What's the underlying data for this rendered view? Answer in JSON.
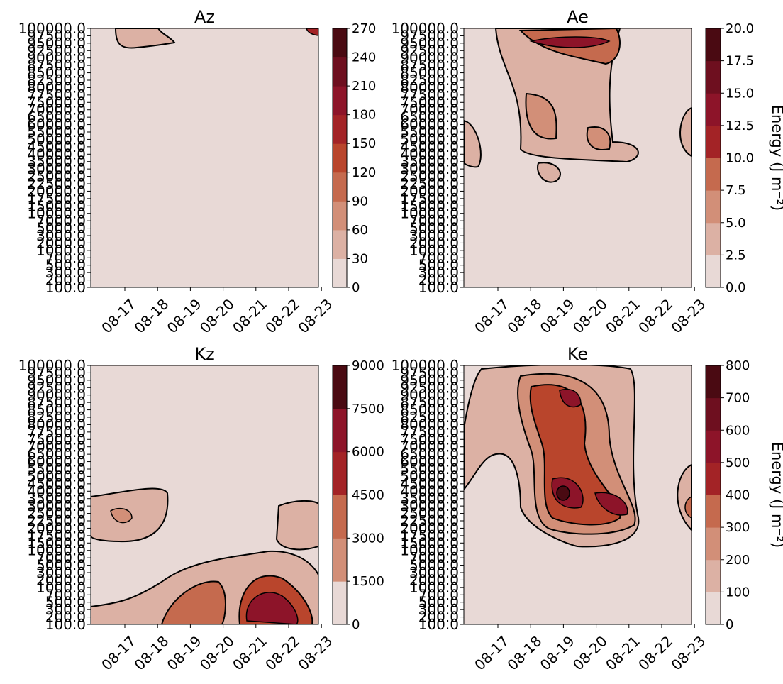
{
  "chart_data": [
    {
      "type": "heatmap",
      "title": "Az",
      "x_ticks": [
        "08-17",
        "08-18",
        "08-19",
        "08-20",
        "08-21",
        "08-22",
        "08-23"
      ],
      "y_ticks": [
        "100.0",
        "200.0",
        "300.0",
        "500.0",
        "700.0",
        "1000.0",
        "2000.0",
        "3000.0",
        "5000.0",
        "7000.0",
        "10000.0",
        "15000.0",
        "17500.0",
        "20000.0",
        "22500.0",
        "25000.0",
        "30000.0",
        "35000.0",
        "40000.0",
        "45000.0",
        "50000.0",
        "55000.0",
        "60000.0",
        "65000.0",
        "70000.0",
        "75000.0",
        "77500.0",
        "80000.0",
        "82500.0",
        "85000.0",
        "87500.0",
        "90000.0",
        "92500.0",
        "95000.0",
        "97500.0",
        "100000.0"
      ],
      "colorbar_ticks": [
        "0",
        "30",
        "60",
        "90",
        "120",
        "150",
        "180",
        "210",
        "240",
        "270"
      ],
      "colorbar_label": "",
      "levels": [
        0,
        30,
        60,
        90,
        120,
        150,
        180,
        210,
        240,
        270
      ]
    },
    {
      "type": "heatmap",
      "title": "Ae",
      "x_ticks": [
        "08-17",
        "08-18",
        "08-19",
        "08-20",
        "08-21",
        "08-22",
        "08-23"
      ],
      "y_ticks": [
        "100.0",
        "200.0",
        "300.0",
        "500.0",
        "700.0",
        "1000.0",
        "2000.0",
        "3000.0",
        "5000.0",
        "7000.0",
        "10000.0",
        "15000.0",
        "17500.0",
        "20000.0",
        "22500.0",
        "25000.0",
        "30000.0",
        "35000.0",
        "40000.0",
        "45000.0",
        "50000.0",
        "55000.0",
        "60000.0",
        "65000.0",
        "70000.0",
        "75000.0",
        "77500.0",
        "80000.0",
        "82500.0",
        "85000.0",
        "87500.0",
        "90000.0",
        "92500.0",
        "95000.0",
        "97500.0",
        "100000.0"
      ],
      "colorbar_ticks": [
        "0.0",
        "2.5",
        "5.0",
        "7.5",
        "10.0",
        "12.5",
        "15.0",
        "17.5",
        "20.0"
      ],
      "colorbar_label": "Energy  (J m⁻²)",
      "levels": [
        0,
        2.5,
        5,
        7.5,
        10,
        12.5,
        15,
        17.5,
        20
      ]
    },
    {
      "type": "heatmap",
      "title": "Kz",
      "x_ticks": [
        "08-17",
        "08-18",
        "08-19",
        "08-20",
        "08-21",
        "08-22",
        "08-23"
      ],
      "y_ticks": [
        "100.0",
        "200.0",
        "300.0",
        "500.0",
        "700.0",
        "1000.0",
        "2000.0",
        "3000.0",
        "5000.0",
        "7000.0",
        "10000.0",
        "15000.0",
        "17500.0",
        "20000.0",
        "22500.0",
        "25000.0",
        "30000.0",
        "35000.0",
        "40000.0",
        "45000.0",
        "50000.0",
        "55000.0",
        "60000.0",
        "65000.0",
        "70000.0",
        "75000.0",
        "77500.0",
        "80000.0",
        "82500.0",
        "85000.0",
        "87500.0",
        "90000.0",
        "92500.0",
        "95000.0",
        "97500.0",
        "100000.0"
      ],
      "colorbar_ticks": [
        "0",
        "1500",
        "3000",
        "4500",
        "6000",
        "7500",
        "9000"
      ],
      "colorbar_label": "",
      "levels": [
        0,
        1500,
        3000,
        4500,
        6000,
        7500,
        9000
      ]
    },
    {
      "type": "heatmap",
      "title": "Ke",
      "x_ticks": [
        "08-17",
        "08-18",
        "08-19",
        "08-20",
        "08-21",
        "08-22",
        "08-23"
      ],
      "y_ticks": [
        "100.0",
        "200.0",
        "300.0",
        "500.0",
        "700.0",
        "1000.0",
        "2000.0",
        "3000.0",
        "5000.0",
        "7000.0",
        "10000.0",
        "15000.0",
        "17500.0",
        "20000.0",
        "22500.0",
        "25000.0",
        "30000.0",
        "35000.0",
        "40000.0",
        "45000.0",
        "50000.0",
        "55000.0",
        "60000.0",
        "65000.0",
        "70000.0",
        "75000.0",
        "77500.0",
        "80000.0",
        "82500.0",
        "85000.0",
        "87500.0",
        "90000.0",
        "92500.0",
        "95000.0",
        "97500.0",
        "100000.0"
      ],
      "colorbar_ticks": [
        "0",
        "100",
        "200",
        "300",
        "400",
        "500",
        "600",
        "700",
        "800"
      ],
      "colorbar_label": "Energy  (J m⁻²)",
      "levels": [
        0,
        100,
        200,
        300,
        400,
        500,
        600,
        700,
        800
      ]
    }
  ],
  "colors": {
    "colormap": [
      "#e8d9d6",
      "#dcb1a4",
      "#d28f78",
      "#c56a4e",
      "#b9452c",
      "#a32326",
      "#8d1429",
      "#6e0f1f",
      "#4a0a12"
    ],
    "line": "#000000"
  }
}
